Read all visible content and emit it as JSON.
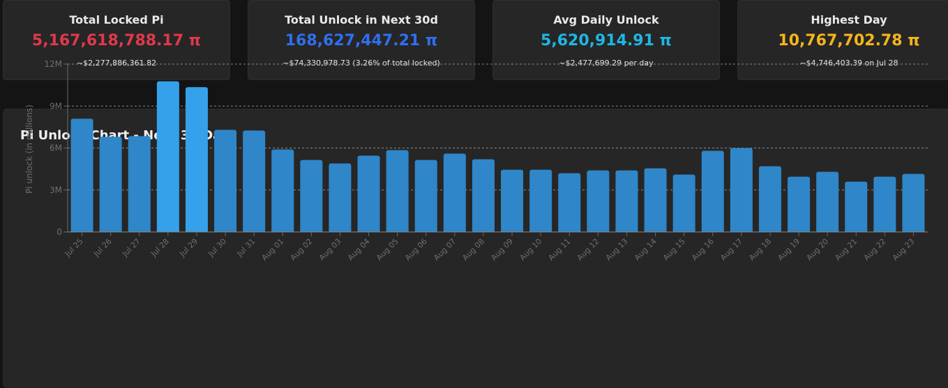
{
  "cards": [
    {
      "title": "Total Locked Pi",
      "value": "5,167,618,788.17 π",
      "sub": "~$2,277,886,361.82",
      "color": "#e0394a"
    },
    {
      "title": "Total Unlock in Next 30d",
      "value": "168,627,447.21 π",
      "sub": "~$74,330,978.73 (3.26% of total locked)",
      "color": "#2f6ff0"
    },
    {
      "title": "Avg Daily Unlock",
      "value": "5,620,914.91 π",
      "sub": "~$2,477,699.29 per day",
      "color": "#1fb7e6"
    },
    {
      "title": "Highest Day",
      "value": "10,767,702.78 π",
      "sub": "~$4,746,403.39 on Jul 28",
      "color": "#f5b51c"
    }
  ],
  "chart_data": {
    "type": "bar",
    "title": "Pi Unlock Chart - Next 30 Days",
    "ylabel": "Pi unlock (in millions)",
    "xlabel": "",
    "ylim": [
      0,
      12
    ],
    "yticks": [
      0,
      3,
      6,
      9,
      12
    ],
    "ytick_labels": [
      "0",
      "3M",
      "6M",
      "9M",
      "12M"
    ],
    "grid": "horizontal dashed",
    "categories": [
      "Jul 25",
      "Jul 26",
      "Jul 27",
      "Jul 28",
      "Jul 29",
      "Jul 30",
      "Jul 31",
      "Aug 01",
      "Aug 02",
      "Aug 03",
      "Aug 04",
      "Aug 05",
      "Aug 06",
      "Aug 07",
      "Aug 08",
      "Aug 09",
      "Aug 10",
      "Aug 11",
      "Aug 12",
      "Aug 13",
      "Aug 14",
      "Aug 15",
      "Aug 16",
      "Aug 17",
      "Aug 18",
      "Aug 19",
      "Aug 20",
      "Aug 21",
      "Aug 22",
      "Aug 23"
    ],
    "values": [
      8.1,
      6.8,
      6.85,
      10.77,
      10.35,
      7.3,
      7.25,
      5.9,
      5.15,
      4.9,
      5.45,
      5.85,
      5.15,
      5.6,
      5.2,
      4.45,
      4.45,
      4.2,
      4.4,
      4.4,
      4.55,
      4.1,
      5.8,
      6.0,
      4.7,
      3.95,
      4.3,
      3.6,
      3.95,
      4.15
    ],
    "colors": {
      "bar": "#2f86c8",
      "bar_highlight": "#35a1ea"
    }
  }
}
